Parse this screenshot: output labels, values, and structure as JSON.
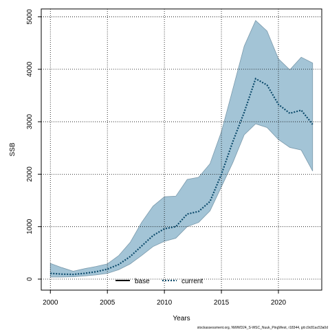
{
  "chart_data": {
    "type": "line",
    "xlabel": "Years",
    "ylabel": "SSB",
    "xlim": [
      1999.2,
      2023.8
    ],
    "ylim": [
      -210,
      5150
    ],
    "x_ticks": [
      2000,
      2005,
      2010,
      2015,
      2020
    ],
    "y_ticks": [
      0,
      1000,
      2000,
      3000,
      4000,
      5000
    ],
    "grid": true,
    "legend_position": "bottom-center",
    "colors": {
      "band": "#a3c4d6",
      "band_edge": "#7a99ab",
      "current_line": "#0b4a6b",
      "base_line": "#000000",
      "grid": "#000000"
    },
    "years": [
      2000,
      2001,
      2002,
      2003,
      2004,
      2005,
      2006,
      2007,
      2008,
      2009,
      2010,
      2011,
      2012,
      2013,
      2014,
      2015,
      2016,
      2017,
      2018,
      2019,
      2020,
      2021,
      2022,
      2023
    ],
    "series": [
      {
        "name": "base",
        "style": "solid",
        "values": []
      },
      {
        "name": "current",
        "style": "dotted",
        "values": [
          110,
          95,
          90,
          110,
          140,
          190,
          280,
          430,
          630,
          830,
          960,
          1000,
          1240,
          1290,
          1480,
          2000,
          2620,
          3180,
          3820,
          3700,
          3330,
          3160,
          3220,
          2950
        ]
      }
    ],
    "band": {
      "upper": [
        300,
        220,
        150,
        200,
        240,
        290,
        450,
        700,
        1080,
        1390,
        1570,
        1580,
        1900,
        1940,
        2200,
        2810,
        3620,
        4440,
        4930,
        4730,
        4200,
        3990,
        4230,
        4120
      ],
      "lower": [
        40,
        40,
        45,
        60,
        80,
        110,
        180,
        290,
        450,
        620,
        720,
        780,
        1000,
        1080,
        1300,
        1760,
        2220,
        2750,
        2960,
        2890,
        2660,
        2510,
        2460,
        2060
      ]
    },
    "credit": "stockassessment.org, NWWD24_S-WSC_Nuuk_PingWest, r18344, git:c9c81ac53a0d"
  }
}
